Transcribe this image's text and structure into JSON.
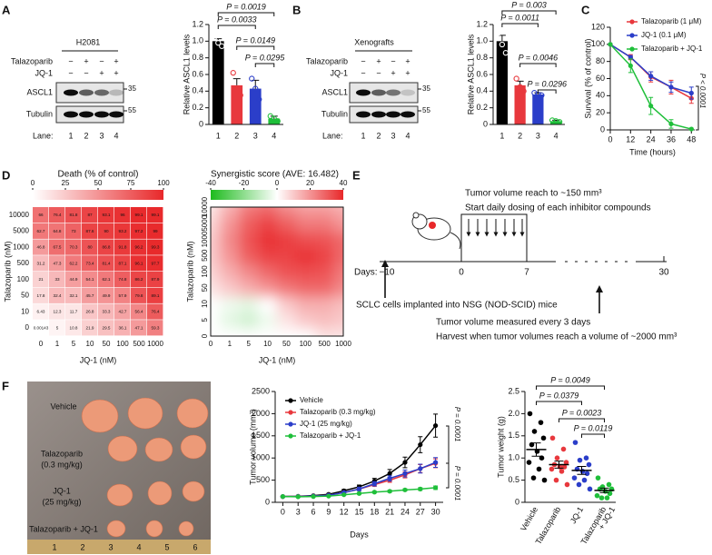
{
  "panel_labels": [
    "A",
    "B",
    "C",
    "D",
    "E",
    "F"
  ],
  "blots": [
    {
      "title": "H2081",
      "rows": [
        "Talazoparib",
        "JQ-1"
      ],
      "signs": [
        [
          "−",
          "+",
          "−",
          "+"
        ],
        [
          "−",
          "−",
          "+",
          "+"
        ]
      ],
      "bands": [
        "ASCL1",
        "Tubulin"
      ],
      "markers": [
        "35",
        "55"
      ],
      "lane_label": "Lane:",
      "lanes": [
        "1",
        "2",
        "3",
        "4"
      ]
    },
    {
      "title": "Xenografts",
      "rows": [
        "Talazoparib",
        "JQ-1"
      ],
      "signs": [
        [
          "−",
          "+",
          "−",
          "+"
        ],
        [
          "−",
          "−",
          "+",
          "+"
        ]
      ],
      "bands": [
        "ASCL1",
        "Tubulin"
      ],
      "markers": [
        "35",
        "55"
      ],
      "lane_label": "Lane:",
      "lanes": [
        "1",
        "2",
        "3",
        "4"
      ]
    }
  ],
  "chart_data": [
    {
      "type": "bar",
      "ylabel": "Relative ASCL1 levels",
      "categories": [
        "1",
        "2",
        "3",
        "4"
      ],
      "values": [
        1.0,
        0.47,
        0.43,
        0.07
      ],
      "errors": [
        0.03,
        0.08,
        0.1,
        0.03
      ],
      "points": [
        [
          1.05,
          0.98,
          0.94
        ],
        [
          0.62,
          0.42,
          0.35
        ],
        [
          0.55,
          0.43,
          0.3
        ],
        [
          0.1,
          0.07,
          0.04
        ]
      ],
      "colors": [
        "#000000",
        "#e8383d",
        "#2b3ec9",
        "#1fbf3a"
      ],
      "ylim": [
        0,
        1.2
      ],
      "yticks": [
        0,
        0.2,
        0.4,
        0.6,
        0.8,
        {
          "value": 1,
          "label": "1.0"
        },
        1.2
      ],
      "annotations": [
        "P = 0.0019",
        "P = 0.0033",
        "P = 0.0149",
        "P = 0.0295"
      ]
    },
    {
      "type": "bar",
      "ylabel": "Relative ASCL1 levels",
      "categories": [
        "1",
        "2",
        "3",
        "4"
      ],
      "values": [
        1.0,
        0.47,
        0.36,
        0.04
      ],
      "errors": [
        0.07,
        0.05,
        0.02,
        0.01
      ],
      "points": [
        [
          1.1,
          0.96,
          0.86
        ],
        [
          0.55,
          0.45,
          0.4
        ],
        [
          0.38,
          0.36,
          0.35
        ],
        [
          0.05,
          0.04,
          0.03
        ]
      ],
      "colors": [
        "#000000",
        "#e8383d",
        "#2b3ec9",
        "#1fbf3a"
      ],
      "ylim": [
        0,
        1.2
      ],
      "yticks": [
        0,
        0.2,
        0.4,
        0.6,
        0.8,
        {
          "value": 1,
          "label": "1.0"
        },
        1.2
      ],
      "annotations": [
        "P = 0.003",
        "P = 0.0011",
        "P = 0.0046",
        "P = 0.0296"
      ]
    },
    {
      "type": "line",
      "xlabel": "Time (hours)",
      "ylabel": "Survival (% of control)",
      "x": [
        0,
        12,
        24,
        36,
        48
      ],
      "xlim": [
        0,
        50
      ],
      "xticks": [
        0,
        12,
        24,
        36,
        48
      ],
      "ylim": [
        0,
        120
      ],
      "yticks": [
        0,
        20,
        40,
        60,
        80,
        100,
        120
      ],
      "legend": "upper right",
      "series": [
        {
          "name": "Talazoparib (1 μM)",
          "color": "#e8383d",
          "values": [
            100,
            85,
            62,
            50,
            37
          ],
          "errors": [
            0,
            3,
            6,
            8,
            6
          ]
        },
        {
          "name": "JQ-1 (0.1 μM)",
          "color": "#2b3ec9",
          "values": [
            100,
            85,
            63,
            50,
            43
          ],
          "errors": [
            0,
            2,
            5,
            6,
            7
          ]
        },
        {
          "name": "Talazoparib + JQ-1",
          "color": "#1fbf3a",
          "values": [
            100,
            75,
            28,
            7,
            1
          ],
          "errors": [
            0,
            8,
            10,
            5,
            1
          ]
        }
      ],
      "annotations": [
        "P < 0.0001"
      ]
    },
    {
      "type": "heatmap",
      "title": "Death (% of control)",
      "xlabel": "JQ-1 (nM)",
      "ylabel": "Talazoparib (nM)",
      "categories": [
        0,
        1,
        5,
        10,
        50,
        100,
        500,
        1000
      ],
      "y_categories": [
        10000,
        5000,
        1000,
        500,
        100,
        50,
        10,
        0
      ],
      "values": [
        [
          66,
          76.4,
          81.8,
          87,
          93.1,
          96,
          99.1,
          99.1
        ],
        [
          62.7,
          64.8,
          73,
          87.6,
          90,
          93.2,
          97.2,
          99
        ],
        [
          46.8,
          67.5,
          70.3,
          80,
          86.8,
          91.8,
          96.2,
          99.3
        ],
        [
          31.2,
          47.3,
          62.2,
          73.4,
          81.4,
          87.1,
          96.1,
          97.7
        ],
        [
          21,
          33,
          44.9,
          54.1,
          62.1,
          74.8,
          86.2,
          87.9
        ],
        [
          17.8,
          32.4,
          32.1,
          45.7,
          49.9,
          57.9,
          79.8,
          89.1
        ],
        [
          6.43,
          12.3,
          11.7,
          26.8,
          33.3,
          42.7,
          56.4,
          76.4
        ],
        [
          0.00143,
          5,
          10.8,
          21.9,
          29.5,
          36.1,
          47.1,
          59.3
        ]
      ],
      "clim": [
        0,
        100
      ],
      "colorbar_ticks": [
        0,
        25,
        50,
        75,
        100
      ],
      "colors": [
        "#ffffff",
        "#e8282a"
      ]
    },
    {
      "type": "contour",
      "title": "Synergistic score (AVE: 16.482)",
      "xlabel": "JQ-1 (nM)",
      "ylabel": "Talazoparib (nM)",
      "categories": [
        0,
        1,
        5,
        10,
        50,
        100,
        500,
        1000
      ],
      "y_categories": [
        0,
        5,
        10,
        50,
        100,
        500,
        1000,
        5000,
        10000
      ],
      "values": [
        [
          0,
          0,
          0,
          0,
          0,
          0,
          5,
          5
        ],
        [
          0,
          -5,
          -8,
          -3,
          5,
          10,
          12,
          10
        ],
        [
          0,
          -3,
          -5,
          0,
          10,
          15,
          15,
          12
        ],
        [
          5,
          10,
          15,
          20,
          25,
          28,
          28,
          22
        ],
        [
          8,
          15,
          22,
          28,
          32,
          33,
          32,
          25
        ],
        [
          10,
          20,
          30,
          35,
          35,
          38,
          35,
          28
        ],
        [
          10,
          22,
          32,
          38,
          36,
          33,
          32,
          28
        ],
        [
          8,
          20,
          30,
          35,
          30,
          25,
          25,
          20
        ],
        [
          5,
          15,
          25,
          28,
          22,
          18,
          18,
          15
        ]
      ],
      "clim": [
        -40,
        40
      ],
      "colorbar_ticks": [
        -40,
        -20,
        0,
        20,
        40
      ],
      "colors": [
        "#1dbb1d",
        "#ffffff",
        "#e8282a"
      ]
    },
    {
      "type": "line",
      "xlabel": "Days",
      "ylabel": "Tumor volume (mm³)",
      "x": [
        0,
        3,
        6,
        9,
        12,
        15,
        18,
        21,
        24,
        27,
        30
      ],
      "xlim": [
        -1.5,
        31.5
      ],
      "xticks": [
        0,
        3,
        6,
        9,
        12,
        15,
        18,
        21,
        24,
        27,
        30
      ],
      "ylim": [
        0,
        2500
      ],
      "yticks": [
        0,
        500,
        1000,
        1500,
        2000,
        2500
      ],
      "legend": "upper left",
      "series": [
        {
          "name": "Vehicle",
          "color": "#000000",
          "values": [
            130,
            135,
            150,
            180,
            260,
            350,
            480,
            650,
            900,
            1300,
            1730
          ],
          "errors": [
            10,
            10,
            15,
            20,
            30,
            40,
            60,
            90,
            120,
            180,
            260
          ]
        },
        {
          "name": "Talazoparib (0.3 mg/kg)",
          "color": "#e8383d",
          "values": [
            130,
            130,
            140,
            160,
            220,
            300,
            400,
            500,
            620,
            760,
            880
          ],
          "errors": [
            10,
            10,
            10,
            15,
            20,
            30,
            40,
            50,
            70,
            90,
            100
          ]
        },
        {
          "name": "JQ-1 (25 mg/kg)",
          "color": "#2b3ec9",
          "values": [
            130,
            130,
            140,
            160,
            220,
            300,
            420,
            540,
            650,
            760,
            900
          ],
          "errors": [
            10,
            10,
            10,
            15,
            25,
            40,
            50,
            60,
            80,
            100,
            110
          ]
        },
        {
          "name": "Talazoparib + JQ-1",
          "color": "#1fbf3a",
          "values": [
            130,
            125,
            130,
            140,
            170,
            200,
            230,
            250,
            280,
            300,
            330
          ],
          "errors": [
            10,
            10,
            10,
            10,
            15,
            20,
            20,
            25,
            25,
            30,
            40
          ]
        }
      ],
      "annotations": [
        "P = 0.0001",
        "P = 0.0001"
      ]
    },
    {
      "type": "dot",
      "ylabel": "Tumor weight (g)",
      "categories": [
        "Vehicle",
        "Talazoparib",
        "JQ-1",
        [
          "Talazoparib",
          "+ JQ-1"
        ]
      ],
      "points": [
        [
          2.0,
          1.8,
          1.6,
          1.45,
          1.3,
          1.15,
          1.0,
          0.9,
          0.75,
          0.55,
          0.5
        ],
        [
          1.45,
          1.2,
          1.0,
          0.9,
          0.85,
          0.8,
          0.8,
          0.75,
          0.7,
          0.5,
          0.4
        ],
        [
          1.35,
          1.0,
          0.95,
          0.85,
          0.75,
          0.7,
          0.65,
          0.55,
          0.5,
          0.4,
          0.3
        ],
        [
          0.55,
          0.4,
          0.35,
          0.3,
          0.3,
          0.25,
          0.2,
          0.15,
          0.1,
          0.1
        ]
      ],
      "means": [
        1.19,
        0.85,
        0.72,
        0.27
      ],
      "errors": [
        0.15,
        0.08,
        0.09,
        0.05
      ],
      "colors": [
        "#000000",
        "#e8383d",
        "#2b3ec9",
        "#1fbf3a"
      ],
      "ylim": [
        0,
        2.5
      ],
      "yticks": [
        0,
        0.5,
        {
          "value": 1,
          "label": "1.0"
        },
        1.5,
        {
          "value": 2,
          "label": "2.0"
        },
        2.5
      ],
      "annotations": [
        "P = 0.0049",
        "P = 0.0379",
        "P = 0.0023",
        "P = 0.0119"
      ]
    }
  ],
  "diagram": {
    "note_top": [
      "Tumor volume reach to ~150 mm³",
      "Start daily dosing of each inhibitor compounds"
    ],
    "days_label": "Days:",
    "days": [
      "−10",
      "0",
      "7",
      "30"
    ],
    "note_implant": "SCLC cells implanted into NSG (NOD-SCID) mice",
    "note_bottom": [
      "Tumor volume measured every 3 days",
      "Harvest when tumor volumes reach a volume of ~2000 mm³"
    ]
  },
  "photo": {
    "labels": [
      "Vehicle",
      [
        "Talazoparib",
        "(0.3 mg/kg)"
      ],
      [
        "JQ-1",
        "(25 mg/kg)"
      ],
      "Talazoparib + JQ-1"
    ],
    "ruler": [
      "1",
      "2",
      "3",
      "4",
      "5",
      "6"
    ]
  }
}
